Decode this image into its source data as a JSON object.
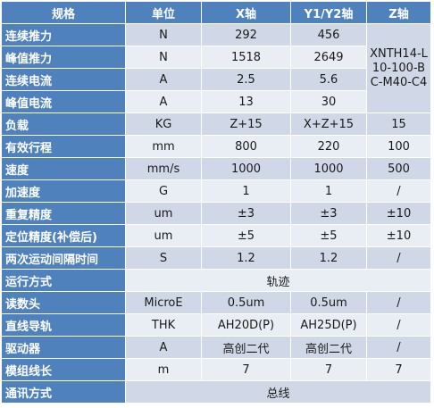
{
  "headers": [
    "规格",
    "单位",
    "X轴",
    "Y1/Y2轴",
    "Z轴"
  ],
  "rows": [
    {
      "label": "连续推力",
      "unit": "N",
      "x": "292",
      "y": "456"
    },
    {
      "label": "峰值推力",
      "unit": "N",
      "x": "1518",
      "y": "2649"
    },
    {
      "label": "连续电流",
      "unit": "A",
      "x": "2.5",
      "y": "5.6"
    },
    {
      "label": "峰值电流",
      "unit": "A",
      "x": "13",
      "y": "30"
    },
    {
      "label": "负载",
      "unit": "KG",
      "x": "Z+15",
      "y": "X+Z+15",
      "z": "15"
    },
    {
      "label": "有效行程",
      "unit": "mm",
      "x": "800",
      "y": "220",
      "z": "100"
    },
    {
      "label": "速度",
      "unit": "mm/s",
      "x": "1000",
      "y": "1000",
      "z": "500"
    },
    {
      "label": "加速度",
      "unit": "G",
      "x": "1",
      "y": "1",
      "z": "/"
    },
    {
      "label": "重复精度",
      "unit": "um",
      "x": "±3",
      "y": "±3",
      "z": "±10"
    },
    {
      "label": "定位精度(补偿后)",
      "unit": "um",
      "x": "±5",
      "y": "±5",
      "z": "±10"
    },
    {
      "label": "两次运动间隔时间",
      "unit": "S",
      "x": "1.2",
      "y": "1.2",
      "z": "/"
    },
    {
      "label": "运行方式",
      "merged": "轨迹"
    },
    {
      "label": "读数头",
      "unit": "MicroE",
      "x": "0.5um",
      "y": "0.5um",
      "z": "/"
    },
    {
      "label": "直线导轨",
      "unit": "THK",
      "x": "AH20D(P)",
      "y": "AH25D(P)",
      "z": "/"
    },
    {
      "label": "驱动器",
      "unit": "A",
      "x": "高创二代",
      "y": "高创二代",
      "z": "/"
    },
    {
      "label": "模组线长",
      "unit": "m",
      "x": "7",
      "y": "7",
      "z": "7"
    },
    {
      "label": "通讯方式",
      "merged": "总线"
    }
  ],
  "z_model": "XNTH14-L10-100-BC-M40-C4"
}
